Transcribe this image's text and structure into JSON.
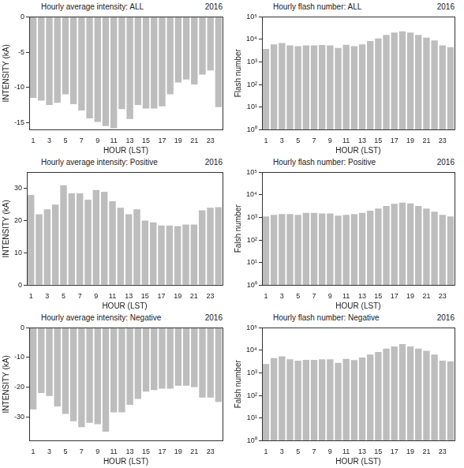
{
  "chart_data": [
    {
      "type": "bar",
      "title": "Hourly average intensity: ALL",
      "subtitle": "2016",
      "xlabel": "HOUR (LST)",
      "ylabel": "INTENSITY (kA)",
      "categories": [
        1,
        null,
        3,
        null,
        5,
        null,
        7,
        null,
        9,
        null,
        11,
        null,
        13,
        null,
        15,
        null,
        17,
        null,
        19,
        null,
        21,
        null,
        23,
        null
      ],
      "values": [
        -11.5,
        -11.9,
        -12.5,
        -12.2,
        -11,
        -12.4,
        -13.3,
        -14.4,
        -14.9,
        -15.5,
        -15.8,
        -13.1,
        -14.5,
        -12.5,
        -13,
        -13,
        -12.7,
        -11,
        -9.3,
        -8.9,
        -9.6,
        -8.2,
        -7.6,
        -12.8
      ],
      "color": "#bdbdbd",
      "ylim": [
        -16,
        0
      ],
      "yticks": [
        -15,
        -10,
        -5,
        0
      ],
      "grid": false
    },
    {
      "type": "bar",
      "title": "Hourly flash number: ALL",
      "subtitle": "2016",
      "xlabel": "HOUR (LST)",
      "ylabel": "Flash number",
      "categories": [
        1,
        null,
        3,
        null,
        5,
        null,
        7,
        null,
        9,
        null,
        11,
        null,
        13,
        null,
        15,
        null,
        17,
        null,
        19,
        null,
        21,
        null,
        23,
        null
      ],
      "values": [
        3800,
        6000,
        7000,
        5500,
        5000,
        5500,
        5500,
        5700,
        5500,
        4200,
        5800,
        5000,
        6000,
        8500,
        11000,
        16000,
        20000,
        23000,
        20000,
        16000,
        12000,
        9000,
        5500,
        4500
      ],
      "color": "#bdbdbd",
      "log": "y",
      "ylim": [
        1,
        100000
      ],
      "yticks": [
        {
          "value": 1,
          "label": "10⁰"
        },
        {
          "value": 10,
          "label": "10¹"
        },
        {
          "value": 100,
          "label": "10²"
        },
        {
          "value": 1000,
          "label": "10³"
        },
        {
          "value": 10000,
          "label": "10⁴"
        },
        {
          "value": 100000,
          "label": "10⁵"
        }
      ],
      "grid": false
    },
    {
      "type": "bar",
      "title": "Hourly average intensity: Positive",
      "subtitle": "2016",
      "xlabel": "HOUR (LST)",
      "ylabel": "INTENSITY (kA)",
      "categories": [
        1,
        null,
        3,
        null,
        5,
        null,
        7,
        null,
        9,
        null,
        11,
        null,
        13,
        null,
        15,
        null,
        17,
        null,
        19,
        null,
        21,
        null,
        23,
        null
      ],
      "values": [
        28,
        22,
        23.5,
        25,
        31,
        28.5,
        28.5,
        26.5,
        29.5,
        29,
        26,
        24,
        22,
        23.5,
        20,
        19.5,
        18.5,
        18.5,
        18.3,
        18.8,
        18.8,
        23.2,
        24,
        24.2
      ],
      "color": "#bdbdbd",
      "ylim": [
        0,
        35
      ],
      "yticks": [
        0,
        10,
        20,
        30
      ],
      "grid": false
    },
    {
      "type": "bar",
      "title": "Hourly flash number: Positive",
      "subtitle": "2016",
      "xlabel": "HOUR (LST)",
      "ylabel": "Falsh number",
      "categories": [
        1,
        null,
        3,
        null,
        5,
        null,
        7,
        null,
        9,
        null,
        11,
        null,
        13,
        null,
        15,
        null,
        17,
        null,
        19,
        null,
        21,
        null,
        23,
        null
      ],
      "values": [
        1100,
        1300,
        1400,
        1400,
        1300,
        1600,
        1600,
        1500,
        1500,
        1200,
        1300,
        1400,
        1600,
        2000,
        2500,
        3200,
        4000,
        4500,
        4200,
        3200,
        2500,
        1800,
        1300,
        1100
      ],
      "color": "#bdbdbd",
      "log": "y",
      "ylim": [
        1,
        100000
      ],
      "yticks": [
        {
          "value": 1,
          "label": "10⁰"
        },
        {
          "value": 10,
          "label": "10¹"
        },
        {
          "value": 100,
          "label": "10²"
        },
        {
          "value": 1000,
          "label": "10³"
        },
        {
          "value": 10000,
          "label": "10⁴"
        },
        {
          "value": 100000,
          "label": "10⁵"
        }
      ],
      "grid": false
    },
    {
      "type": "bar",
      "title": "Hourly average intensity: Negative",
      "subtitle": "2016",
      "xlabel": "HOUR (LST)",
      "ylabel": "INTENSITY (kA)",
      "categories": [
        1,
        null,
        3,
        null,
        5,
        null,
        7,
        null,
        9,
        null,
        11,
        null,
        13,
        null,
        15,
        null,
        17,
        null,
        19,
        null,
        21,
        null,
        23,
        null
      ],
      "values": [
        -27.5,
        -22,
        -23,
        -26.5,
        -29,
        -31.5,
        -33.5,
        -32,
        -32.5,
        -35,
        -28.5,
        -28.5,
        -26,
        -24,
        -21.5,
        -21,
        -20.5,
        -20.5,
        -19.5,
        -19.5,
        -20,
        -23.5,
        -23.5,
        -25
      ],
      "color": "#bdbdbd",
      "ylim": [
        -38,
        0
      ],
      "yticks": [
        -30,
        -20,
        -10,
        0
      ],
      "grid": false
    },
    {
      "type": "bar",
      "title": "Hourly flash number: Negative",
      "subtitle": "2016",
      "xlabel": "HOUR (LST)",
      "ylabel": "Falsh number",
      "categories": [
        1,
        null,
        3,
        null,
        5,
        null,
        7,
        null,
        9,
        null,
        11,
        null,
        13,
        null,
        15,
        null,
        17,
        null,
        19,
        null,
        21,
        null,
        23,
        null
      ],
      "values": [
        2500,
        4500,
        5500,
        4000,
        3500,
        3800,
        3800,
        4000,
        4000,
        2800,
        4200,
        3700,
        4800,
        6500,
        8500,
        12000,
        15000,
        19000,
        15000,
        12000,
        9500,
        6500,
        3500,
        3200
      ],
      "color": "#bdbdbd",
      "log": "y",
      "ylim": [
        1,
        100000
      ],
      "yticks": [
        {
          "value": 1,
          "label": "10⁰"
        },
        {
          "value": 10,
          "label": "10¹"
        },
        {
          "value": 100,
          "label": "10²"
        },
        {
          "value": 1000,
          "label": "10³"
        },
        {
          "value": 10000,
          "label": "10⁴"
        },
        {
          "value": 100000,
          "label": "10⁵"
        }
      ],
      "grid": false
    }
  ]
}
